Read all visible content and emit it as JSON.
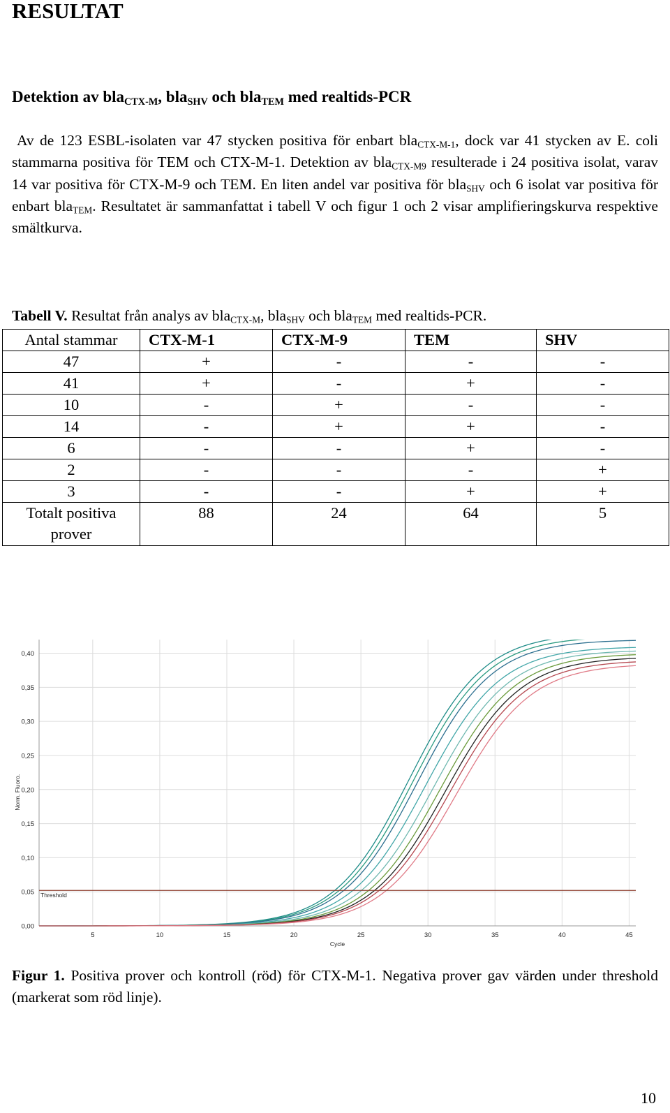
{
  "heading": "RESULTAT",
  "subheading": {
    "prefix": "Detektion av bla",
    "sub1": "CTX-M",
    "mid1": ", bla",
    "sub2": "SHV",
    "mid2": " och bla",
    "sub3": "TEM",
    "suffix": " med realtids-PCR"
  },
  "paragraph": {
    "p1": "Av de 123 ESBL-isolaten var 47 stycken positiva för enbart bla",
    "s1": "CTX-M-1",
    "p2": ", dock var 41 stycken av E. coli stammarna positiva för TEM och CTX-M-1. Detektion av bla",
    "s2": "CTX-M9",
    "p3": " resulterade i 24 positiva isolat, varav 14 var positiva för CTX-M-9 och TEM. En liten andel var positiva för bla",
    "s3": "SHV",
    "p4": " och 6 isolat var positiva för enbart bla",
    "s4": "TEM",
    "p5": ". Resultatet är sammanfattat i tabell V och figur 1 och 2 visar amplifieringskurva respektive smältkurva."
  },
  "table_caption": {
    "label": "Tabell V.",
    "t1": " Resultat från analys av bla",
    "s1": "CTX-M",
    "t2": ", bla",
    "s2": "SHV",
    "t3": " och bla",
    "s3": "TEM",
    "t4": " med realtids-PCR."
  },
  "table": {
    "headers": [
      "Antal stammar",
      "CTX-M-1",
      "CTX-M-9",
      "TEM",
      "SHV"
    ],
    "rows": [
      [
        "47",
        "+",
        "-",
        "-",
        "-"
      ],
      [
        "41",
        "+",
        "-",
        "+",
        "-"
      ],
      [
        "10",
        "-",
        "+",
        "-",
        "-"
      ],
      [
        "14",
        "-",
        "+",
        "+",
        "-"
      ],
      [
        "6",
        "-",
        "-",
        "+",
        "-"
      ],
      [
        "2",
        "-",
        "-",
        "-",
        "+"
      ],
      [
        "3",
        "-",
        "-",
        "+",
        "+"
      ]
    ],
    "total_row": [
      "Totalt positiva prover",
      "88",
      "24",
      "64",
      "5"
    ]
  },
  "chart_data": {
    "type": "line",
    "xlabel": "Cycle",
    "ylabel": "Norm. Fluoro.",
    "xlim": [
      1,
      45.5
    ],
    "ylim": [
      0,
      0.42
    ],
    "xticks": [
      5,
      10,
      15,
      20,
      25,
      30,
      35,
      40,
      45
    ],
    "yticks": [
      "0,00",
      "0,05",
      "0,10",
      "0,15",
      "0,20",
      "0,25",
      "0,30",
      "0,35",
      "0,40"
    ],
    "ytick_values": [
      0,
      0.05,
      0.1,
      0.15,
      0.2,
      0.25,
      0.3,
      0.35,
      0.4
    ],
    "threshold": {
      "label": "Threshold",
      "value": 0.052,
      "color": "#8b3a2a"
    },
    "grid": true,
    "curve_model": "sigmoid: ymax / (1 + exp(-(cycle - midpoint) / slope))",
    "series": [
      {
        "color": "#1e8c88",
        "ymax": 0.43,
        "midpoint": 28.6,
        "slope": 2.8
      },
      {
        "color": "#2a9a80",
        "ymax": 0.425,
        "midpoint": 28.9,
        "slope": 2.8
      },
      {
        "color": "#2c6f8f",
        "ymax": 0.42,
        "midpoint": 29.2,
        "slope": 2.8
      },
      {
        "color": "#41a6a8",
        "ymax": 0.41,
        "midpoint": 29.8,
        "slope": 2.8
      },
      {
        "color": "#6fb8b0",
        "ymax": 0.405,
        "midpoint": 30.4,
        "slope": 2.8
      },
      {
        "color": "#6a9a3a",
        "ymax": 0.4,
        "midpoint": 30.9,
        "slope": 2.8
      },
      {
        "color": "#222222",
        "ymax": 0.395,
        "midpoint": 31.3,
        "slope": 2.8
      },
      {
        "color": "#b5474f",
        "ymax": 0.39,
        "midpoint": 31.6,
        "slope": 2.8
      },
      {
        "color": "#e07a86",
        "ymax": 0.385,
        "midpoint": 32.1,
        "slope": 2.8
      }
    ]
  },
  "figure_caption": {
    "label": "Figur 1.",
    "text": " Positiva prover och kontroll (röd) för CTX-M-1. Negativa prover gav värden under threshold (markerat som röd linje)."
  },
  "page_number": "10"
}
